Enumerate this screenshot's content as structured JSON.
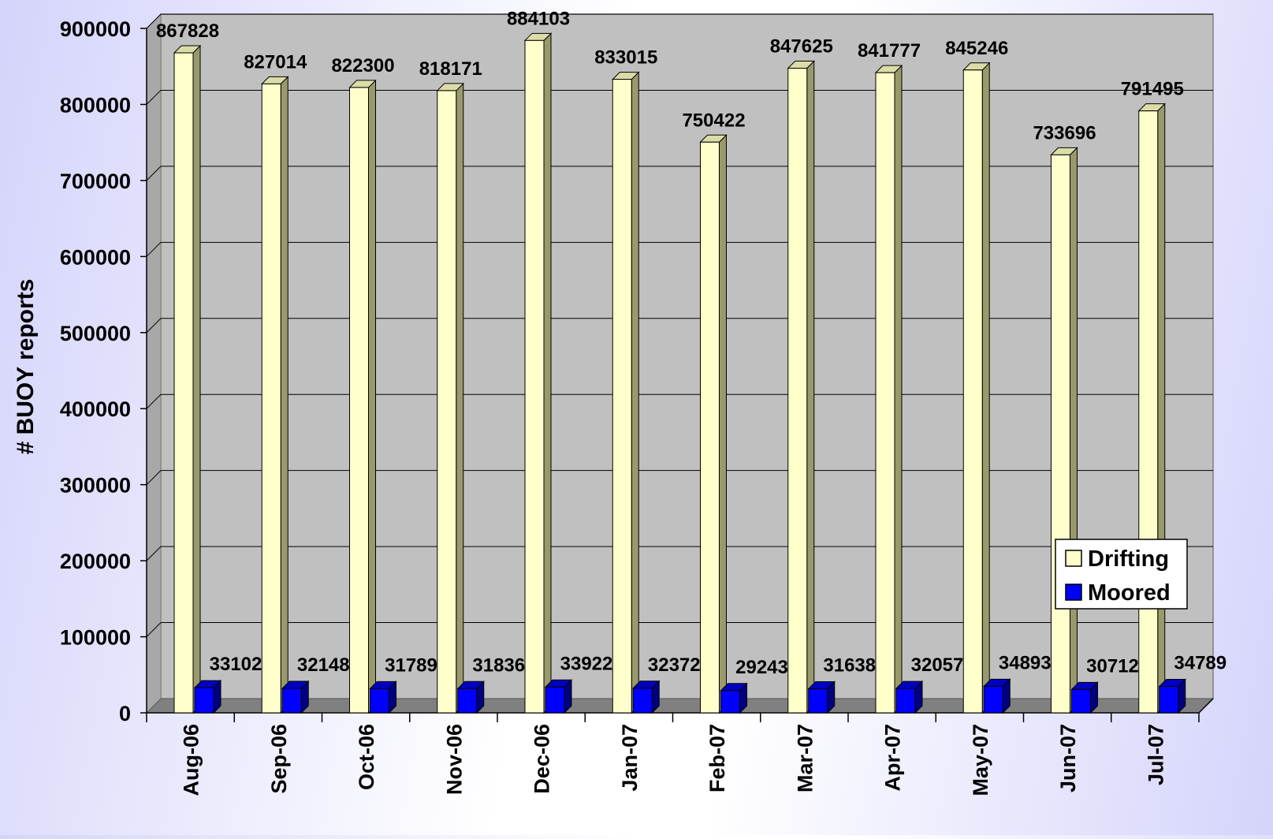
{
  "chart_data": {
    "type": "bar",
    "title": "",
    "xlabel": "",
    "ylabel": "# BUOY reports",
    "ylim": [
      0,
      900000
    ],
    "yticks": [
      "0",
      "100000",
      "200000",
      "300000",
      "400000",
      "500000",
      "600000",
      "700000",
      "800000",
      "900000"
    ],
    "categories": [
      "Aug-06",
      "Sep-06",
      "Oct-06",
      "Nov-06",
      "Dec-06",
      "Jan-07",
      "Feb-07",
      "Mar-07",
      "Apr-07",
      "May-07",
      "Jun-07",
      "Jul-07"
    ],
    "series": [
      {
        "name": "Drifting",
        "color": "#ffffcc",
        "values": [
          867828,
          827014,
          822300,
          818171,
          884103,
          833015,
          750422,
          847625,
          841777,
          845246,
          733696,
          791495
        ]
      },
      {
        "name": "Moored",
        "color": "#0000ff",
        "values": [
          33102,
          32148,
          31789,
          31836,
          33922,
          32372,
          29243,
          31638,
          32057,
          34893,
          30712,
          34789
        ]
      }
    ],
    "grid": true,
    "legend": "bottom-right",
    "colors": {
      "plot_wall": "#c0c0c0",
      "plot_floor": "#808080",
      "drifting_side": "#99996b",
      "drifting_top": "#dcdca8",
      "moored_side": "#000080",
      "moored_top": "#0000c0"
    }
  }
}
